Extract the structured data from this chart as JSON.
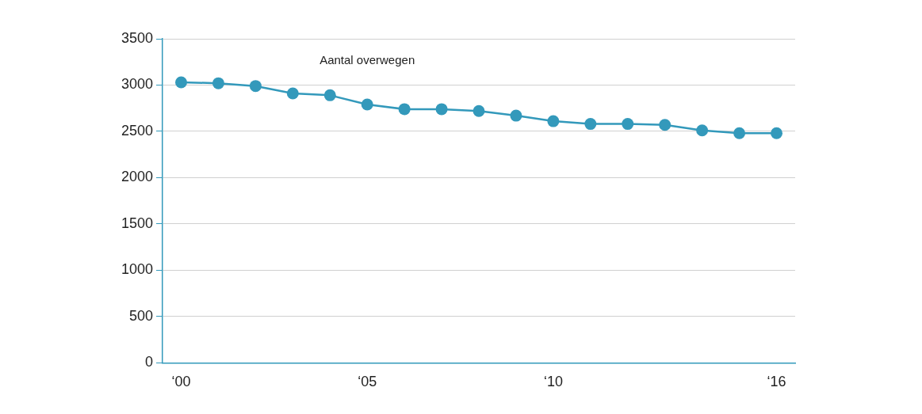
{
  "chart_data": {
    "type": "line",
    "categories": [
      "‘00",
      null,
      null,
      null,
      null,
      "‘05",
      null,
      null,
      null,
      null,
      "‘10",
      null,
      null,
      null,
      null,
      null,
      "‘16"
    ],
    "series": [
      {
        "name": "Aantal overwegen",
        "color": "#3399bb",
        "values": [
          3030,
          3020,
          2990,
          2910,
          2890,
          2790,
          2740,
          2740,
          2720,
          2670,
          2610,
          2580,
          2580,
          2570,
          2510,
          2480,
          2480
        ]
      }
    ],
    "ylim": [
      0,
      3500
    ],
    "yticks": [
      0,
      500,
      1000,
      1500,
      2000,
      2500,
      3000,
      3500
    ],
    "grid": "y",
    "legend": false,
    "marker": "circle",
    "line_style": "solid"
  }
}
